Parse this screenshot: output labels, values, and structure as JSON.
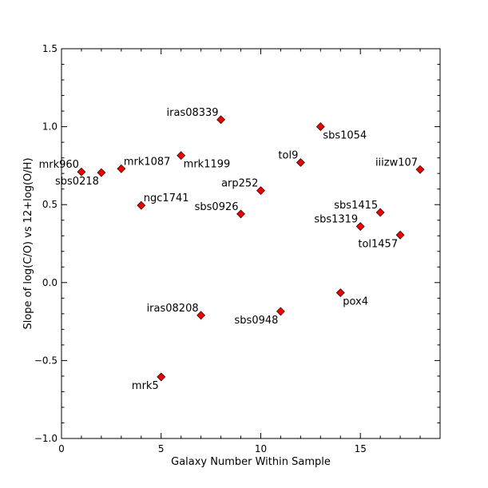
{
  "chart_data": {
    "type": "scatter",
    "title": "",
    "xlabel": "Galaxy Number Within Sample",
    "ylabel": "Slope of log(C/O) vs 12+log(O/H)",
    "xlim": [
      0,
      19
    ],
    "ylim": [
      -1.0,
      1.5
    ],
    "xticks": [
      0,
      5,
      10,
      15
    ],
    "xtick_labels": [
      "0",
      "5",
      "10",
      "15"
    ],
    "yticks": [
      -1.0,
      -0.5,
      0.0,
      0.5,
      1.0,
      1.5
    ],
    "ytick_labels": [
      "−1.0",
      "−0.5",
      "0.0",
      "0.5",
      "1.0",
      "1.5"
    ],
    "grid": false,
    "marker_color": "#ee0000",
    "marker_shape": "diamond",
    "points": [
      {
        "label": "mrk960",
        "x": 1,
        "y": 0.71,
        "label_pos": "above-left"
      },
      {
        "label": "sbs0218",
        "x": 2,
        "y": 0.705,
        "label_pos": "below-left"
      },
      {
        "label": "mrk1087",
        "x": 3,
        "y": 0.73,
        "label_pos": "above-right"
      },
      {
        "label": "ngc1741",
        "x": 4,
        "y": 0.495,
        "label_pos": "above-right"
      },
      {
        "label": "mrk5",
        "x": 5,
        "y": -0.605,
        "label_pos": "below-left"
      },
      {
        "label": "mrk1199",
        "x": 6,
        "y": 0.815,
        "label_pos": "below-right"
      },
      {
        "label": "iras08208",
        "x": 7,
        "y": -0.21,
        "label_pos": "above-left"
      },
      {
        "label": "iras08339",
        "x": 8,
        "y": 1.045,
        "label_pos": "above-left"
      },
      {
        "label": "sbs0926",
        "x": 9,
        "y": 0.44,
        "label_pos": "above-left"
      },
      {
        "label": "arp252",
        "x": 10,
        "y": 0.59,
        "label_pos": "above-left"
      },
      {
        "label": "sbs0948",
        "x": 11,
        "y": -0.185,
        "label_pos": "below-left"
      },
      {
        "label": "tol9",
        "x": 12,
        "y": 0.77,
        "label_pos": "above-left"
      },
      {
        "label": "sbs1054",
        "x": 13,
        "y": 1.0,
        "label_pos": "below-right"
      },
      {
        "label": "pox4",
        "x": 14,
        "y": -0.065,
        "label_pos": "below-right"
      },
      {
        "label": "sbs1319",
        "x": 15,
        "y": 0.36,
        "label_pos": "above-left"
      },
      {
        "label": "sbs1415",
        "x": 16,
        "y": 0.45,
        "label_pos": "above-left"
      },
      {
        "label": "tol1457",
        "x": 17,
        "y": 0.305,
        "label_pos": "below-left"
      },
      {
        "label": "iiizw107",
        "x": 18,
        "y": 0.725,
        "label_pos": "above-left"
      }
    ]
  }
}
